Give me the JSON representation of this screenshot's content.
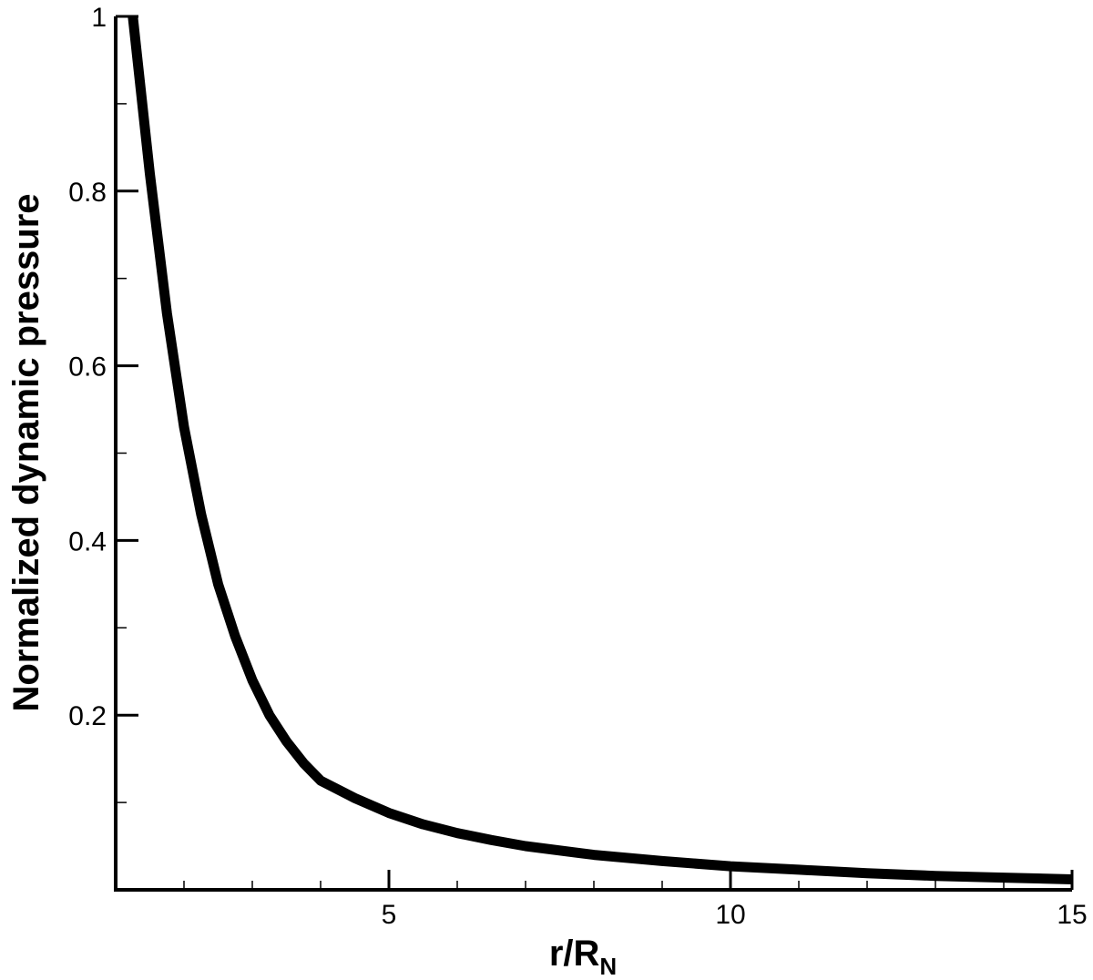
{
  "chart_data": {
    "type": "line",
    "title": "",
    "xlabel": "r/R",
    "xlabel_subscript": "N",
    "ylabel": "Normalized dynamic pressure",
    "xlim": [
      1,
      15
    ],
    "ylim": [
      0,
      1
    ],
    "x_major_ticks": [
      5,
      10,
      15
    ],
    "x_minor_step": 1,
    "y_major_ticks": [
      0.2,
      0.4,
      0.6,
      0.8,
      1
    ],
    "y_tick_labels": [
      "0.2",
      "0.4",
      "0.6",
      "0.8",
      "1"
    ],
    "y_minor_step": 0.1,
    "grid": false,
    "legend": "none",
    "line_color": "#000000",
    "series": [
      {
        "x": [
          1.25,
          1.5,
          1.75,
          2.0,
          2.25,
          2.5,
          2.75,
          3.0,
          3.25,
          3.5,
          3.75,
          4.0,
          4.5,
          5.0,
          5.5,
          6.0,
          6.5,
          7.0,
          8.0,
          9.0,
          10.0,
          11.0,
          12.0,
          13.0,
          14.0,
          15.0
        ],
        "y": [
          1.0,
          0.82,
          0.66,
          0.53,
          0.43,
          0.35,
          0.29,
          0.24,
          0.2,
          0.17,
          0.145,
          0.125,
          0.105,
          0.088,
          0.075,
          0.065,
          0.057,
          0.05,
          0.04,
          0.033,
          0.027,
          0.023,
          0.019,
          0.016,
          0.014,
          0.012
        ]
      }
    ]
  }
}
